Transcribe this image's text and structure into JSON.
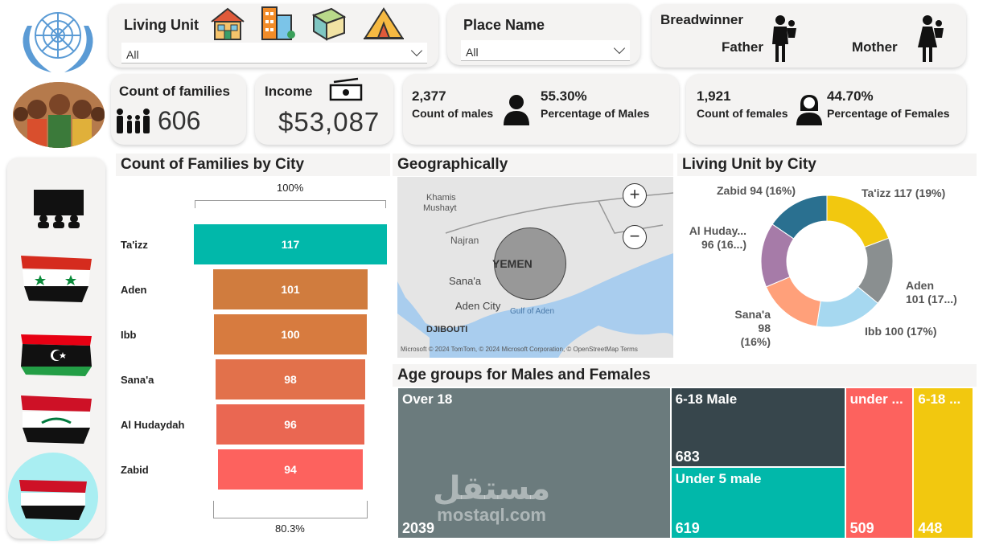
{
  "filters": {
    "living_unit": {
      "title": "Living Unit",
      "value": "All"
    },
    "place_name": {
      "title": "Place Name",
      "value": "All"
    },
    "breadwinner": {
      "title": "Breadwinner",
      "father": "Father",
      "mother": "Mother"
    }
  },
  "kpis": {
    "families": {
      "label": "Count of families",
      "value": "606"
    },
    "income": {
      "label": "Income",
      "value": "$53,087"
    },
    "males": {
      "count": "2,377",
      "count_label": "Count of males",
      "pct": "55.30%",
      "pct_label": "Percentage of Males"
    },
    "females": {
      "count": "1,921",
      "count_label": "Count of females",
      "pct": "44.70%",
      "pct_label": "Percentage of Females"
    }
  },
  "families_by_city": {
    "title": "Count of Families by City",
    "top_label": "100%",
    "bottom_label": "80.3%",
    "colors": [
      "#01b8aa",
      "#d07c3e",
      "#d77b3f",
      "#e2714b",
      "#ea6752",
      "#fd625e"
    ]
  },
  "map": {
    "title": "Geographically",
    "labels": {
      "khamis": "Khamis",
      "mushayt": "Mushayt",
      "najran": "Najran",
      "yemen": "YEMEN",
      "sanaa": "Sana'a",
      "aden_city": "Aden City",
      "gulf": "Gulf of Aden",
      "djibouti": "DJIBOUTI"
    },
    "attribution": "Microsoft  © 2024 TomTom, © 2024 Microsoft Corporation, © OpenStreetMap  Terms",
    "zoom_in": "+",
    "zoom_out": "−"
  },
  "living_unit_by_city": {
    "title": "Living Unit by City",
    "labels": {
      "taizz": "Ta'izz 117 (19%)",
      "aden_1": "Aden",
      "aden_2": "101 (17...)",
      "ibb": "Ibb 100 (17%)",
      "sanaa_1": "Sana'a",
      "sanaa_2": "98 (16%)",
      "hudaydah_1": "Al Huday...",
      "hudaydah_2": "96 (16...)",
      "zabid": "Zabid 94 (16%)"
    }
  },
  "age_groups": {
    "title": "Age groups for Males and Females",
    "cells": [
      {
        "label": "Over 18",
        "value": "2039",
        "color": "#6b7b7d"
      },
      {
        "label": "6-18 Male",
        "value": "683",
        "color": "#37464c"
      },
      {
        "label": "Under 5 male",
        "value": "619",
        "color": "#01b8aa"
      },
      {
        "label": "under ...",
        "value": "509",
        "color": "#fd625e"
      },
      {
        "label": "6-18 ...",
        "value": "448",
        "color": "#f2c80f"
      }
    ]
  },
  "chart_data": [
    {
      "type": "bar",
      "title": "Count of Families by City",
      "categories": [
        "Ta'izz",
        "Aden",
        "Ibb",
        "Sana'a",
        "Al Hudaydah",
        "Zabid"
      ],
      "values": [
        117,
        101,
        100,
        98,
        96,
        94
      ]
    },
    {
      "type": "pie",
      "title": "Living Unit by City",
      "categories": [
        "Ta'izz",
        "Aden",
        "Ibb",
        "Sana'a",
        "Al Hudaydah",
        "Zabid"
      ],
      "values": [
        117,
        101,
        100,
        98,
        96,
        94
      ],
      "colors": [
        "#f2c80f",
        "#8a8f90",
        "#a6d8f0",
        "#ffa07a",
        "#a67ba8",
        "#2a7090"
      ]
    },
    {
      "type": "heatmap",
      "title": "Age groups for Males and Females",
      "categories": [
        "Over 18",
        "6-18 Male",
        "Under 5 male",
        "under ...",
        "6-18 ..."
      ],
      "values": [
        2039,
        683,
        619,
        509,
        448
      ]
    }
  ],
  "watermark": {
    "arabic": "مستقل",
    "latin": "mostaql.com"
  }
}
